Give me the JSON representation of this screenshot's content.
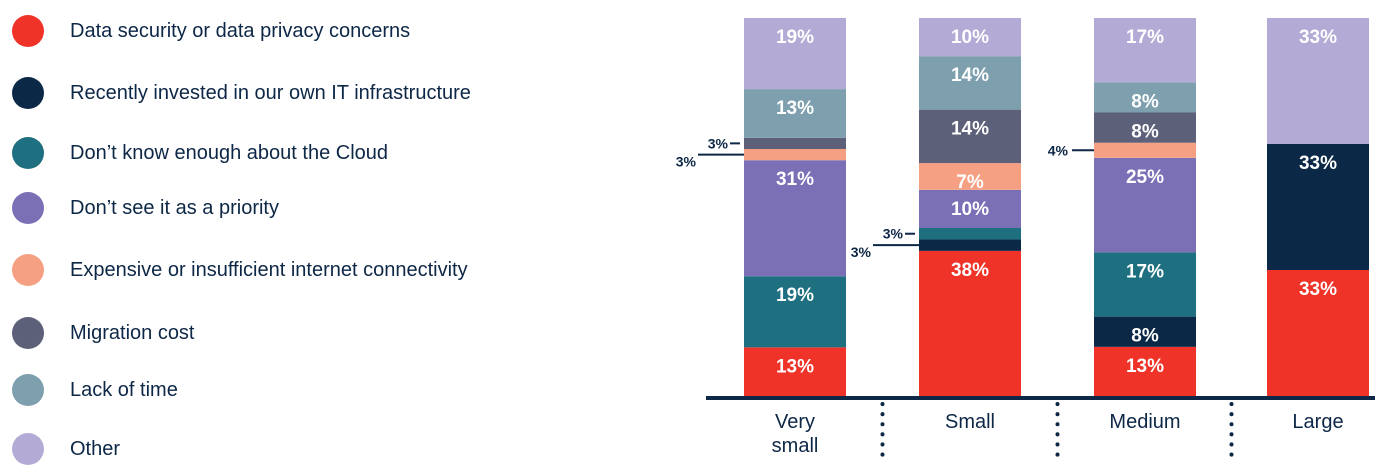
{
  "chart_data": {
    "type": "bar",
    "stacked": true,
    "orientation": "vertical",
    "categories": [
      "Very small",
      "Small",
      "Medium",
      "Large"
    ],
    "category_lines": [
      [
        "Very",
        "small"
      ],
      [
        "Small"
      ],
      [
        "Medium"
      ],
      [
        "Large"
      ]
    ],
    "series": [
      {
        "name": "Data security or data privacy concerns",
        "color": "#ef3329",
        "values": [
          13,
          38,
          13,
          33
        ]
      },
      {
        "name": "Recently invested in our own IT infrastructure",
        "color": "#0b2847",
        "values": [
          0,
          3,
          8,
          33
        ]
      },
      {
        "name": "Don’t know enough about the Cloud",
        "color": "#1e7080",
        "values": [
          19,
          3,
          17,
          0
        ]
      },
      {
        "name": "Don’t see it as a priority",
        "color": "#7b6fb6",
        "values": [
          31,
          10,
          25,
          0
        ]
      },
      {
        "name": "Expensive or insufficient internet connectivity",
        "color": "#f6a083",
        "values": [
          3,
          7,
          4,
          0
        ]
      },
      {
        "name": "Migration cost",
        "color": "#5d6079",
        "values": [
          3,
          14,
          8,
          0
        ]
      },
      {
        "name": "Lack of time",
        "color": "#7d9fae",
        "values": [
          13,
          14,
          8,
          0
        ]
      },
      {
        "name": "Other",
        "color": "#b3abd6",
        "values": [
          19,
          10,
          17,
          33
        ]
      }
    ],
    "value_suffix": "%",
    "legend_position": "left",
    "grid": false
  }
}
